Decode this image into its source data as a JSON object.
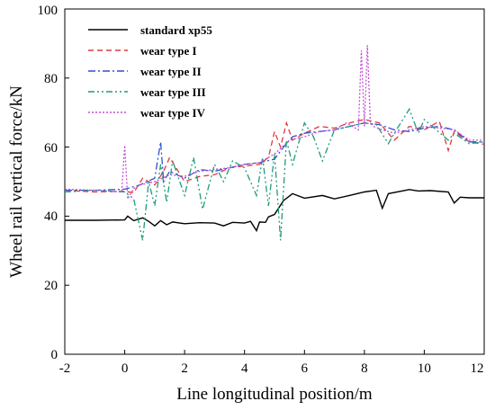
{
  "chart_data": {
    "type": "line",
    "title": "",
    "xlabel": "Line longitudinal position/m",
    "ylabel": "Wheel rail vertical force/kN",
    "xlim": [
      -2,
      12
    ],
    "ylim": [
      0,
      100
    ],
    "xticks": [
      "-2",
      "0",
      "2",
      "4",
      "6",
      "8",
      "10",
      "12"
    ],
    "yticks": [
      "0",
      "20",
      "40",
      "60",
      "80",
      "100"
    ],
    "grid": false,
    "legend_position": "top-left",
    "series": [
      {
        "name": "standard xp55",
        "color": "#000000",
        "dash": "solid",
        "x": [
          -2,
          -1,
          0,
          0.1,
          0.3,
          0.6,
          0.8,
          1.0,
          1.2,
          1.4,
          1.6,
          2.0,
          2.5,
          3.0,
          3.3,
          3.6,
          4.0,
          4.2,
          4.4,
          4.5,
          4.7,
          4.8,
          5.0,
          5.3,
          5.6,
          6.0,
          6.6,
          7.0,
          7.5,
          8.0,
          8.4,
          8.6,
          8.8,
          9.5,
          9.8,
          10.2,
          10.8,
          11.0,
          11.2,
          11.5,
          12.0
        ],
        "values": [
          38.8,
          38.8,
          38.9,
          40.0,
          38.7,
          39.5,
          38.5,
          37.2,
          38.7,
          37.5,
          38.3,
          37.8,
          38.1,
          38.0,
          37.2,
          38.2,
          38.0,
          38.5,
          35.8,
          38.3,
          38.2,
          39.8,
          40.5,
          44.5,
          46.5,
          45.2,
          46.0,
          45.0,
          46.0,
          47.0,
          47.5,
          42.3,
          46.5,
          47.7,
          47.3,
          47.4,
          47.0,
          43.8,
          45.5,
          45.3,
          45.3
        ]
      },
      {
        "name": "wear type I",
        "color": "#e03a3a",
        "dash": "dashed",
        "x": [
          -2,
          -1,
          0,
          0.3,
          0.6,
          1.0,
          1.3,
          1.5,
          2.0,
          2.5,
          3.0,
          3.5,
          4.0,
          4.5,
          4.8,
          5.0,
          5.2,
          5.4,
          5.6,
          6.0,
          6.5,
          7.0,
          7.5,
          8.0,
          8.5,
          8.8,
          9.0,
          9.5,
          10.0,
          10.5,
          10.8,
          11.0,
          11.5,
          12.0
        ],
        "values": [
          47.5,
          47.0,
          47.2,
          46.8,
          51.0,
          49.0,
          53.0,
          57.0,
          50.0,
          51.5,
          52.0,
          54.0,
          54.5,
          55.0,
          57.0,
          64.5,
          60.0,
          67.0,
          62.0,
          64.0,
          66.0,
          65.5,
          67.0,
          68.0,
          67.0,
          64.0,
          62.0,
          66.0,
          65.0,
          67.5,
          59.0,
          64.5,
          61.5,
          60.8
        ]
      },
      {
        "name": "wear type II",
        "color": "#2f4fcf",
        "dash": "dash-dot",
        "x": [
          -2,
          -1,
          0,
          0.5,
          1.0,
          1.2,
          1.3,
          1.5,
          2.0,
          2.5,
          3.0,
          3.5,
          4.0,
          4.5,
          5.0,
          5.3,
          5.6,
          6.0,
          6.5,
          7.0,
          7.5,
          8.0,
          8.5,
          9.0,
          9.5,
          10.0,
          10.5,
          11.0,
          11.5,
          12.0
        ],
        "values": [
          47.5,
          47.5,
          47.8,
          49.0,
          51.0,
          61.5,
          50.0,
          53.0,
          51.0,
          53.5,
          53.0,
          54.0,
          55.0,
          55.5,
          56.5,
          60.0,
          63.0,
          64.0,
          64.5,
          65.0,
          66.0,
          67.0,
          66.5,
          65.0,
          64.5,
          65.5,
          66.0,
          65.0,
          61.5,
          61.5
        ]
      },
      {
        "name": "wear type III",
        "color": "#1f9b7a",
        "dash": "dash-dot-dot",
        "x": [
          -2,
          -1,
          0,
          0.3,
          0.6,
          0.8,
          1.0,
          1.2,
          1.4,
          1.6,
          2.0,
          2.3,
          2.6,
          3.0,
          3.3,
          3.6,
          4.0,
          4.4,
          4.6,
          4.8,
          5.0,
          5.2,
          5.4,
          5.6,
          6.0,
          6.3,
          6.6,
          7.0,
          7.5,
          8.0,
          8.4,
          8.8,
          9.0,
          9.5,
          9.8,
          10.0,
          10.4,
          10.8,
          11.0,
          11.5,
          12.0
        ],
        "values": [
          47.0,
          47.5,
          47.0,
          45.0,
          33.0,
          50.0,
          43.0,
          55.0,
          44.0,
          56.0,
          46.0,
          57.0,
          42.0,
          55.0,
          50.0,
          56.0,
          54.0,
          46.0,
          57.0,
          43.0,
          58.0,
          33.0,
          62.0,
          55.0,
          67.0,
          63.0,
          56.0,
          65.0,
          66.0,
          67.0,
          66.5,
          61.0,
          64.0,
          71.0,
          64.0,
          68.0,
          65.0,
          62.0,
          64.0,
          61.0,
          61.5
        ]
      },
      {
        "name": "wear type IV",
        "color": "#c44fd6",
        "dash": "dotted",
        "x": [
          -2,
          -1,
          -0.1,
          0.0,
          0.1,
          0.3,
          0.5,
          1.0,
          1.5,
          2.0,
          2.5,
          3.0,
          3.5,
          4.0,
          4.5,
          5.0,
          5.5,
          6.0,
          6.5,
          7.0,
          7.4,
          7.8,
          7.9,
          8.0,
          8.1,
          8.2,
          8.3,
          8.6,
          9.0,
          9.5,
          10.0,
          10.5,
          11.0,
          11.5,
          12.0
        ],
        "values": [
          47.8,
          47.5,
          47.0,
          60.5,
          45.0,
          48.0,
          49.0,
          50.0,
          52.0,
          51.5,
          53.0,
          53.5,
          54.0,
          55.0,
          55.5,
          58.0,
          62.0,
          63.0,
          64.5,
          65.0,
          67.0,
          65.0,
          88.0,
          66.0,
          89.5,
          67.0,
          66.0,
          65.0,
          64.0,
          65.0,
          66.0,
          65.5,
          65.0,
          62.0,
          62.0
        ]
      }
    ]
  }
}
